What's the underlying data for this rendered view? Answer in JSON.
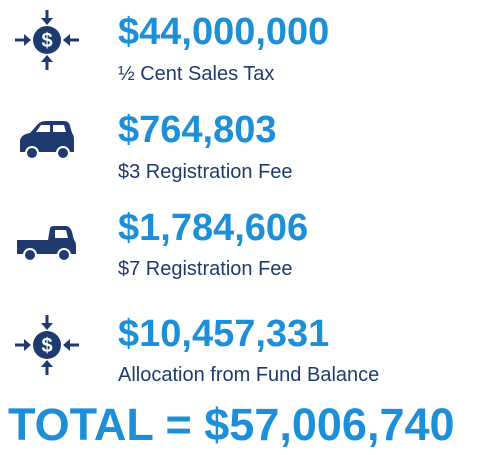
{
  "items": [
    {
      "amount": "$44,000,000",
      "label": "½ Cent Sales Tax"
    },
    {
      "amount": "$764,803",
      "label": "$3 Registration Fee"
    },
    {
      "amount": "$1,784,606",
      "label": "$7 Registration Fee"
    },
    {
      "amount": "$10,457,331",
      "label": "Allocation from Fund Balance"
    }
  ],
  "total": "TOTAL = $57,006,740"
}
